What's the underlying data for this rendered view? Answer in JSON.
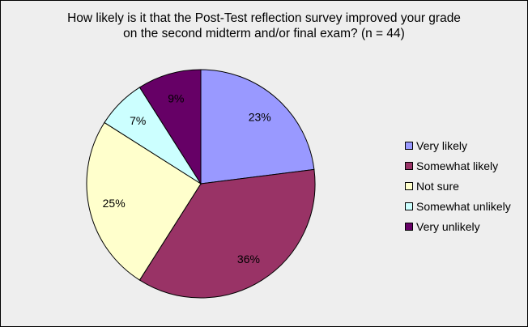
{
  "chart_data": {
    "type": "pie",
    "title": "How likely is it that the Post-Test reflection survey improved your grade on the second midterm and/or final exam? (n = 44)",
    "title_lines": [
      "How likely is it that the Post-Test reflection survey improved your grade",
      "on the second midterm and/or final exam? (n = 44)"
    ],
    "categories": [
      "Very likely",
      "Somewhat likely",
      "Not sure",
      "Somewhat unlikely",
      "Very unlikely"
    ],
    "values": [
      23,
      36,
      25,
      7,
      9
    ],
    "labels": [
      "23%",
      "36%",
      "25%",
      "7%",
      "9%"
    ],
    "colors": [
      "#9999FF",
      "#993366",
      "#FFFFCC",
      "#CCFFFF",
      "#660066"
    ],
    "legend_position": "right",
    "start": "top",
    "direction": "clockwise"
  }
}
